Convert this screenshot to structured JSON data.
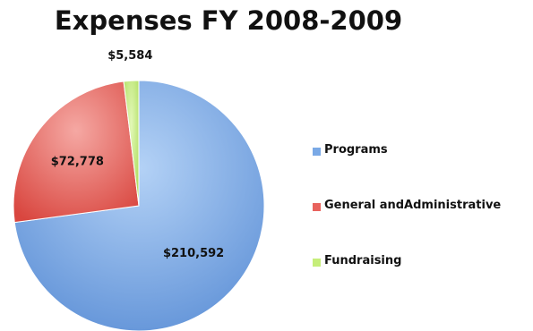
{
  "chart_data": {
    "type": "pie",
    "title": "Expenses FY 2008-2009",
    "categories": [
      "Programs",
      "General andAdministrative",
      "Fundraising"
    ],
    "values": [
      210592,
      72778,
      5584
    ],
    "data_labels": [
      "$210,592",
      "$72,778",
      "$5,584"
    ],
    "colors": [
      "#7aa9e6",
      "#e8635d",
      "#c6ee7a"
    ],
    "legend_placement": "right",
    "start_angle_deg": 0,
    "direction": "clockwise"
  }
}
